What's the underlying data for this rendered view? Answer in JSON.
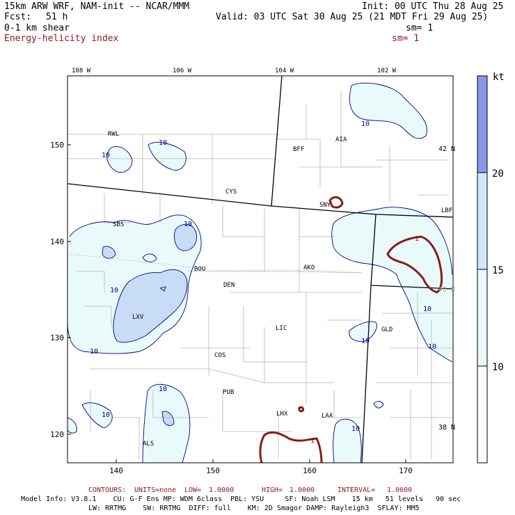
{
  "header": {
    "model": "15km ARW WRF, NAM-init -- NCAR/MMM",
    "init": "Init: 00 UTC Thu 28 Aug 25",
    "fcst_label": "Fcst:",
    "fcst_value": "51 h",
    "valid": "Valid: 03 UTC Sat 30 Aug 25 (21 MDT Fri 29 Aug 25)",
    "field1": "0-1 km shear",
    "field1_sm": "sm= 1",
    "field2": "Energy-helicity index",
    "field2_sm": "sm= 1"
  },
  "map": {
    "lon_labels": [
      "108 W",
      "106 W",
      "104 W",
      "102 W"
    ],
    "lat_labels": [
      "42 N",
      "40 N",
      "38 N"
    ],
    "x_ticks": [
      "140",
      "150",
      "160",
      "170"
    ],
    "y_ticks": [
      "150",
      "140",
      "130",
      "120"
    ],
    "cities": [
      "RWL",
      "BFF",
      "AIA",
      "CYS",
      "SNY",
      "LBF",
      "SBS",
      "AKO",
      "BOU",
      "DEN",
      "LXV",
      "LIC",
      "GLD",
      "COS",
      "PUB",
      "LHX",
      "LAA",
      "ALS"
    ],
    "contour_labels": [
      "10",
      "10",
      "10",
      "10",
      "10",
      "10",
      "10",
      "10",
      "10",
      "10",
      "10",
      "10"
    ],
    "ehi_labels": [
      "1",
      "1"
    ],
    "colors": {
      "shade_10": "#e8fafa",
      "shade_15": "#d4e6fa",
      "shade_20": "#b0c4f0",
      "shade_top": "#8c96e6",
      "contour": "#00008b",
      "ehi": "#8b1a1a",
      "border": "#000000",
      "county": "#b4b4b4"
    }
  },
  "colorbar": {
    "unit": "kt",
    "ticks": [
      "20",
      "15",
      "10"
    ]
  },
  "footer": {
    "contours_label": "CONTOURS:",
    "units": "UNITS=none",
    "low": "LOW=",
    "low_val": "1.0000",
    "high": "HIGH=",
    "high_val": "1.0000",
    "interval": "INTERVAL=",
    "interval_val": "1.0000",
    "line1": "Model Info: V3.8.1    CU: G-F Ens MP: WDM 6class  PBL: YSU     SF: Noah LSM    15 km   51 levels   90 sec",
    "line2": "LW: RRTMG    SW: RRTMG  DIFF: full    KM: 2D Smagor DAMP: Rayleigh3  SFLAY: MM5"
  }
}
